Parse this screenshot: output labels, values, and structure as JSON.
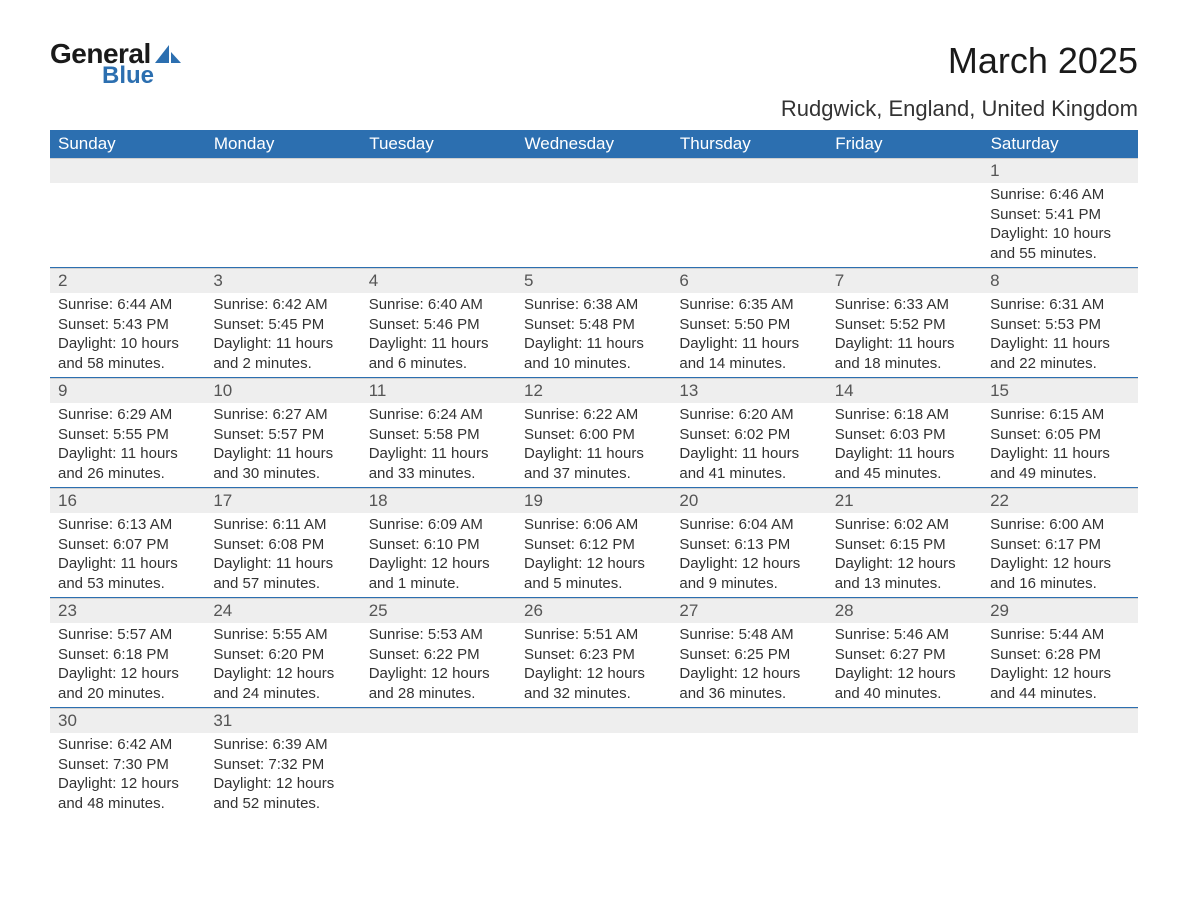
{
  "brand": {
    "name_part1": "General",
    "name_part2": "Blue",
    "icon_color": "#2c6fb0",
    "text_color_dark": "#1a1a1a",
    "text_color_blue": "#2c6fb0"
  },
  "header": {
    "month_title": "March 2025",
    "location": "Rudgwick, England, United Kingdom"
  },
  "colors": {
    "header_bg": "#2c6fb0",
    "header_text": "#ffffff",
    "daynum_bg": "#eeeeee",
    "daynum_text": "#555555",
    "row_divider": "#2c6fb0",
    "body_text": "#333333",
    "page_bg": "#ffffff"
  },
  "weekdays": [
    "Sunday",
    "Monday",
    "Tuesday",
    "Wednesday",
    "Thursday",
    "Friday",
    "Saturday"
  ],
  "labels": {
    "sunrise": "Sunrise:",
    "sunset": "Sunset:",
    "daylight": "Daylight:"
  },
  "weeks": [
    [
      null,
      null,
      null,
      null,
      null,
      null,
      {
        "day": "1",
        "sunrise": "6:46 AM",
        "sunset": "5:41 PM",
        "daylight": "10 hours and 55 minutes."
      }
    ],
    [
      {
        "day": "2",
        "sunrise": "6:44 AM",
        "sunset": "5:43 PM",
        "daylight": "10 hours and 58 minutes."
      },
      {
        "day": "3",
        "sunrise": "6:42 AM",
        "sunset": "5:45 PM",
        "daylight": "11 hours and 2 minutes."
      },
      {
        "day": "4",
        "sunrise": "6:40 AM",
        "sunset": "5:46 PM",
        "daylight": "11 hours and 6 minutes."
      },
      {
        "day": "5",
        "sunrise": "6:38 AM",
        "sunset": "5:48 PM",
        "daylight": "11 hours and 10 minutes."
      },
      {
        "day": "6",
        "sunrise": "6:35 AM",
        "sunset": "5:50 PM",
        "daylight": "11 hours and 14 minutes."
      },
      {
        "day": "7",
        "sunrise": "6:33 AM",
        "sunset": "5:52 PM",
        "daylight": "11 hours and 18 minutes."
      },
      {
        "day": "8",
        "sunrise": "6:31 AM",
        "sunset": "5:53 PM",
        "daylight": "11 hours and 22 minutes."
      }
    ],
    [
      {
        "day": "9",
        "sunrise": "6:29 AM",
        "sunset": "5:55 PM",
        "daylight": "11 hours and 26 minutes."
      },
      {
        "day": "10",
        "sunrise": "6:27 AM",
        "sunset": "5:57 PM",
        "daylight": "11 hours and 30 minutes."
      },
      {
        "day": "11",
        "sunrise": "6:24 AM",
        "sunset": "5:58 PM",
        "daylight": "11 hours and 33 minutes."
      },
      {
        "day": "12",
        "sunrise": "6:22 AM",
        "sunset": "6:00 PM",
        "daylight": "11 hours and 37 minutes."
      },
      {
        "day": "13",
        "sunrise": "6:20 AM",
        "sunset": "6:02 PM",
        "daylight": "11 hours and 41 minutes."
      },
      {
        "day": "14",
        "sunrise": "6:18 AM",
        "sunset": "6:03 PM",
        "daylight": "11 hours and 45 minutes."
      },
      {
        "day": "15",
        "sunrise": "6:15 AM",
        "sunset": "6:05 PM",
        "daylight": "11 hours and 49 minutes."
      }
    ],
    [
      {
        "day": "16",
        "sunrise": "6:13 AM",
        "sunset": "6:07 PM",
        "daylight": "11 hours and 53 minutes."
      },
      {
        "day": "17",
        "sunrise": "6:11 AM",
        "sunset": "6:08 PM",
        "daylight": "11 hours and 57 minutes."
      },
      {
        "day": "18",
        "sunrise": "6:09 AM",
        "sunset": "6:10 PM",
        "daylight": "12 hours and 1 minute."
      },
      {
        "day": "19",
        "sunrise": "6:06 AM",
        "sunset": "6:12 PM",
        "daylight": "12 hours and 5 minutes."
      },
      {
        "day": "20",
        "sunrise": "6:04 AM",
        "sunset": "6:13 PM",
        "daylight": "12 hours and 9 minutes."
      },
      {
        "day": "21",
        "sunrise": "6:02 AM",
        "sunset": "6:15 PM",
        "daylight": "12 hours and 13 minutes."
      },
      {
        "day": "22",
        "sunrise": "6:00 AM",
        "sunset": "6:17 PM",
        "daylight": "12 hours and 16 minutes."
      }
    ],
    [
      {
        "day": "23",
        "sunrise": "5:57 AM",
        "sunset": "6:18 PM",
        "daylight": "12 hours and 20 minutes."
      },
      {
        "day": "24",
        "sunrise": "5:55 AM",
        "sunset": "6:20 PM",
        "daylight": "12 hours and 24 minutes."
      },
      {
        "day": "25",
        "sunrise": "5:53 AM",
        "sunset": "6:22 PM",
        "daylight": "12 hours and 28 minutes."
      },
      {
        "day": "26",
        "sunrise": "5:51 AM",
        "sunset": "6:23 PM",
        "daylight": "12 hours and 32 minutes."
      },
      {
        "day": "27",
        "sunrise": "5:48 AM",
        "sunset": "6:25 PM",
        "daylight": "12 hours and 36 minutes."
      },
      {
        "day": "28",
        "sunrise": "5:46 AM",
        "sunset": "6:27 PM",
        "daylight": "12 hours and 40 minutes."
      },
      {
        "day": "29",
        "sunrise": "5:44 AM",
        "sunset": "6:28 PM",
        "daylight": "12 hours and 44 minutes."
      }
    ],
    [
      {
        "day": "30",
        "sunrise": "6:42 AM",
        "sunset": "7:30 PM",
        "daylight": "12 hours and 48 minutes."
      },
      {
        "day": "31",
        "sunrise": "6:39 AM",
        "sunset": "7:32 PM",
        "daylight": "12 hours and 52 minutes."
      },
      null,
      null,
      null,
      null,
      null
    ]
  ]
}
